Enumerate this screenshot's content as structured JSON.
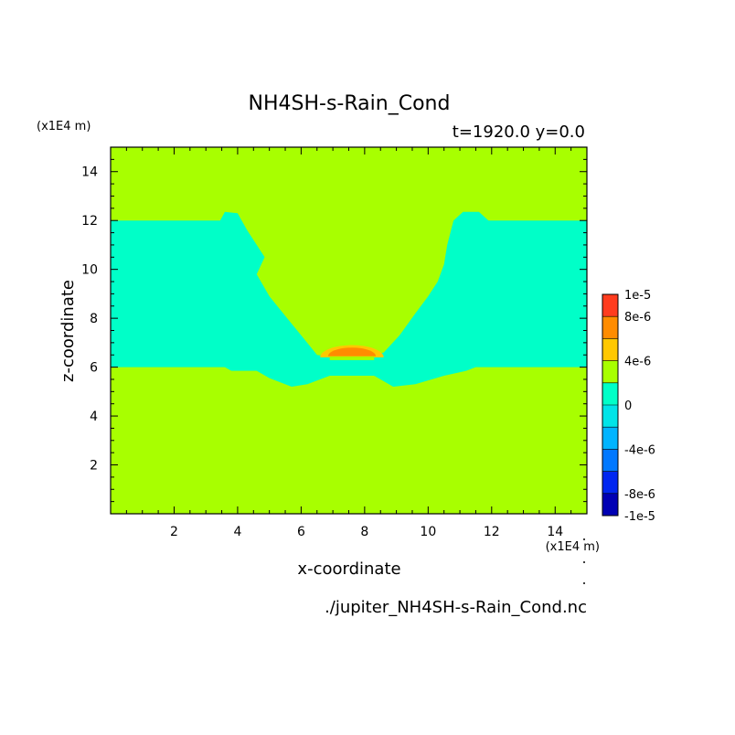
{
  "chart_data": {
    "type": "heatmap",
    "title": "NH4SH-s-Rain_Cond",
    "subtitle": "t=1920.0 y=0.0",
    "xlabel": "x-coordinate",
    "ylabel": "z-coordinate",
    "x_unit": "(x1E4 m)",
    "y_unit": "(x1E4 m)",
    "xlim": [
      0,
      15
    ],
    "ylim": [
      0,
      15
    ],
    "x_ticks": [
      2,
      4,
      6,
      8,
      10,
      12,
      14
    ],
    "y_ticks": [
      2,
      4,
      6,
      8,
      10,
      12,
      14
    ],
    "x_tick_labels": [
      "2",
      "4",
      "6",
      "8",
      "10",
      "12",
      "14"
    ],
    "y_tick_labels": [
      "2",
      "4",
      "6",
      "8",
      "10",
      "12",
      "14"
    ],
    "grid": false,
    "colorbar": {
      "levels": [
        -1e-05,
        -8e-06,
        -6e-06,
        -4e-06,
        -2e-06,
        0,
        2e-06,
        4e-06,
        6e-06,
        8e-06,
        1e-05
      ],
      "colors": [
        "#0000b4",
        "#0026f0",
        "#0078ff",
        "#00b4ff",
        "#00e4e8",
        "#00ffc8",
        "#a8ff00",
        "#ffc800",
        "#ff8c00",
        "#ff3c1e"
      ],
      "tick_labels": [
        "1e-5",
        "8e-6",
        "4e-6",
        "0",
        "-4e-6",
        "-8e-6",
        "-1e-5"
      ]
    },
    "regions": {
      "background": {
        "value_range": [
          0,
          2e-06
        ],
        "color": "#a8ff00"
      },
      "cyan_band": {
        "value_range": [
          -2e-06,
          0
        ],
        "color": "#00ffc8",
        "outline_xz": [
          [
            0,
            6.0
          ],
          [
            3.6,
            6.0
          ],
          [
            3.8,
            5.85
          ],
          [
            4.6,
            5.85
          ],
          [
            5.0,
            5.55
          ],
          [
            5.7,
            5.2
          ],
          [
            6.2,
            5.3
          ],
          [
            6.9,
            5.65
          ],
          [
            8.3,
            5.65
          ],
          [
            8.9,
            5.2
          ],
          [
            9.6,
            5.3
          ],
          [
            10.5,
            5.65
          ],
          [
            11.2,
            5.85
          ],
          [
            11.5,
            6.0
          ],
          [
            15,
            6.0
          ],
          [
            15,
            12.0
          ],
          [
            11.9,
            12.0
          ],
          [
            11.6,
            12.35
          ],
          [
            11.1,
            12.35
          ],
          [
            10.8,
            12.0
          ],
          [
            10.6,
            11.0
          ],
          [
            10.5,
            10.2
          ],
          [
            10.3,
            9.5
          ],
          [
            10.0,
            8.9
          ],
          [
            9.6,
            8.2
          ],
          [
            9.1,
            7.3
          ],
          [
            8.6,
            6.6
          ],
          [
            8.0,
            6.4
          ],
          [
            7.0,
            6.4
          ],
          [
            6.5,
            6.5
          ],
          [
            6.0,
            7.3
          ],
          [
            5.5,
            8.1
          ],
          [
            5.0,
            8.9
          ],
          [
            4.6,
            9.8
          ],
          [
            4.85,
            10.5
          ],
          [
            4.6,
            11.0
          ],
          [
            4.3,
            11.6
          ],
          [
            4.0,
            12.3
          ],
          [
            3.6,
            12.35
          ],
          [
            3.45,
            12.0
          ],
          [
            0,
            12.0
          ]
        ]
      },
      "rain_cap_outer": {
        "value_range": [
          2e-06,
          4e-06
        ],
        "color": "#ffc800",
        "center_x": 7.6,
        "base_z": 6.4,
        "half_width": 1.0,
        "height": 0.5
      },
      "rain_cap_inner": {
        "value_range": [
          4e-06,
          6e-06
        ],
        "color": "#ff8c00",
        "center_x": 7.6,
        "base_z": 6.45,
        "half_width": 0.75,
        "height": 0.35
      }
    }
  },
  "footer": {
    "filename": "./jupiter_NH4SH-s-Rain_Cond.nc"
  }
}
